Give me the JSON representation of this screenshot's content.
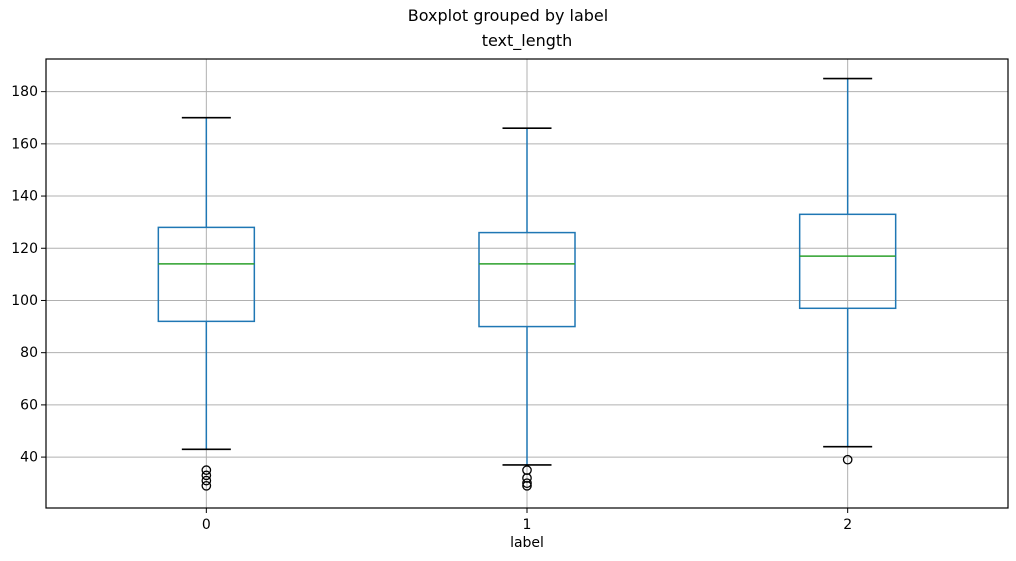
{
  "chart_data": {
    "type": "boxplot",
    "title": "Boxplot grouped by label",
    "axes_title": "text_length",
    "xlabel": "label",
    "ylabel": "",
    "categories": [
      "0",
      "1",
      "2"
    ],
    "xlim": [
      0.5,
      3.5
    ],
    "ylim": [
      20.5,
      192.5
    ],
    "yticks": [
      40,
      60,
      80,
      100,
      120,
      140,
      160,
      180
    ],
    "grid": true,
    "legend": "none",
    "series": [
      {
        "category": "0",
        "whisker_low": 43,
        "q1": 92,
        "median": 114,
        "q3": 128,
        "whisker_high": 170,
        "outliers": [
          35,
          33,
          31,
          29
        ]
      },
      {
        "category": "1",
        "whisker_low": 37,
        "q1": 90,
        "median": 114,
        "q3": 126,
        "whisker_high": 166,
        "outliers": [
          35,
          32,
          30,
          29
        ]
      },
      {
        "category": "2",
        "whisker_low": 44,
        "q1": 97,
        "median": 117,
        "q3": 133,
        "whisker_high": 185,
        "outliers": [
          39
        ]
      }
    ],
    "colors": {
      "box": "#1f77b4",
      "whisker": "#1f77b4",
      "cap": "#000000",
      "median": "#2ca02c",
      "flier_edge": "#000000",
      "grid": "#b0b0b0",
      "spine": "#000000",
      "text": "#000000",
      "background": "#ffffff"
    }
  }
}
